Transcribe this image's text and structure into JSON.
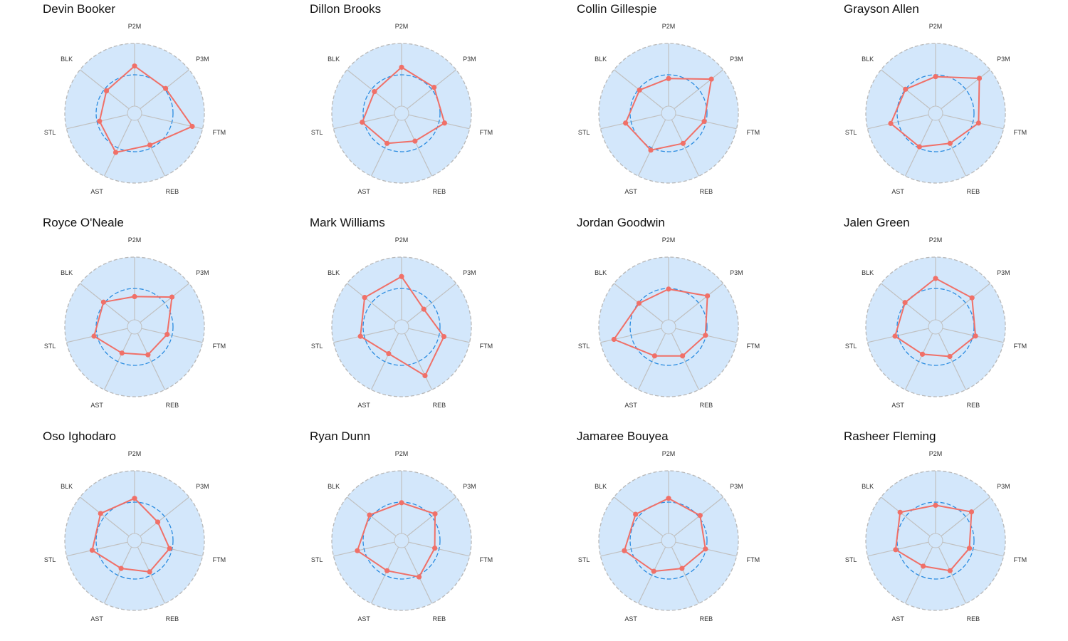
{
  "chart_data": {
    "type": "radar",
    "axes": [
      "P2M",
      "P3M",
      "FTM",
      "REB",
      "AST",
      "STL",
      "BLK"
    ],
    "reference_ring": 0.5,
    "colors": {
      "background": "#d3e7fb",
      "outer_ring": "#b8b8b8",
      "spokes": "#c0c0c0",
      "reference_ring": "#2b8ce0",
      "series": "#f07068"
    },
    "players": [
      {
        "name": "Devin Booker",
        "values": [
          0.64,
          0.52,
          0.83,
          0.45,
          0.58,
          0.46,
          0.46
        ]
      },
      {
        "name": "Dillon Brooks",
        "values": [
          0.62,
          0.55,
          0.59,
          0.38,
          0.42,
          0.53,
          0.44
        ]
      },
      {
        "name": "Collin Gillespie",
        "values": [
          0.44,
          0.76,
          0.47,
          0.42,
          0.54,
          0.59,
          0.48
        ]
      },
      {
        "name": "Grayson Allen",
        "values": [
          0.47,
          0.78,
          0.59,
          0.42,
          0.48,
          0.62,
          0.5
        ]
      },
      {
        "name": "Royce O'Neale",
        "values": [
          0.37,
          0.65,
          0.42,
          0.38,
          0.35,
          0.55,
          0.52
        ]
      },
      {
        "name": "Mark Williams",
        "values": [
          0.69,
          0.34,
          0.58,
          0.75,
          0.36,
          0.56,
          0.64
        ]
      },
      {
        "name": "Jordan Goodwin",
        "values": [
          0.49,
          0.68,
          0.49,
          0.4,
          0.4,
          0.78,
          0.49
        ]
      },
      {
        "name": "Jalen Green",
        "values": [
          0.66,
          0.63,
          0.54,
          0.41,
          0.37,
          0.55,
          0.51
        ]
      },
      {
        "name": "Oso Ighodaro",
        "values": [
          0.56,
          0.36,
          0.46,
          0.44,
          0.38,
          0.58,
          0.58
        ]
      },
      {
        "name": "Ryan Dunn",
        "values": [
          0.49,
          0.57,
          0.43,
          0.53,
          0.42,
          0.61,
          0.54
        ]
      },
      {
        "name": "Jamaree Bouyea",
        "values": [
          0.56,
          0.53,
          0.49,
          0.38,
          0.43,
          0.61,
          0.56
        ]
      },
      {
        "name": "Rasheer Fleming",
        "values": [
          0.45,
          0.62,
          0.44,
          0.42,
          0.34,
          0.54,
          0.61
        ]
      }
    ]
  }
}
